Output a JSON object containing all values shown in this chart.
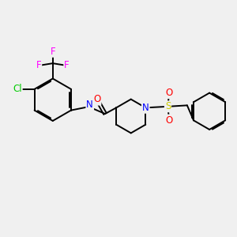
{
  "bg_color": "#f0f0f0",
  "bond_color": "#000000",
  "atom_colors": {
    "N": "#0000ff",
    "O": "#ff0000",
    "F": "#ff00ff",
    "Cl": "#00cc00",
    "S": "#cccc00",
    "C": "#000000",
    "H": "#808080"
  },
  "font_size": 8.5,
  "line_width": 1.4
}
